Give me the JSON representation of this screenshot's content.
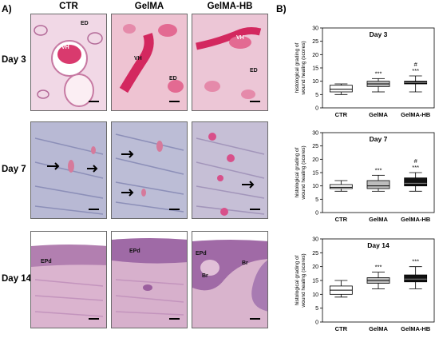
{
  "panel_a": {
    "letter": "A)",
    "columns": [
      "CTR",
      "GelMA",
      "GelMA-HB"
    ],
    "rows": [
      {
        "label": "Day 3",
        "tiles": [
          [
            "ED",
            "VH"
          ],
          [
            "VH",
            "ED"
          ],
          [
            "VH",
            "ED"
          ]
        ]
      },
      {
        "label": "Day 7",
        "tiles": [
          [],
          [],
          []
        ]
      },
      {
        "label": "Day 14",
        "tiles": [
          [
            "EPd"
          ],
          [
            "EPd"
          ],
          [
            "EPd",
            "Br",
            "Br"
          ]
        ]
      }
    ]
  },
  "panel_b": {
    "letter": "B)"
  },
  "colors": {
    "ctr_box": "#ffffff",
    "gelma_box": "#bdbdbd",
    "gelmahb_box": "#111111",
    "stain_pink": "#e88fb0",
    "stain_purple": "#9a8fc0"
  },
  "chart_data": [
    {
      "type": "box",
      "title": "Day 3",
      "ylabel": "histological grading of\nwound healing (scores)",
      "ylim": [
        0,
        30
      ],
      "yticks": [
        0,
        5,
        10,
        15,
        20,
        25,
        30
      ],
      "categories": [
        "CTR",
        "GelMA",
        "GelMA-HB"
      ],
      "boxes": [
        {
          "min": 5,
          "q1": 6,
          "median": 7,
          "q3": 8.5,
          "max": 9
        },
        {
          "min": 6,
          "q1": 8,
          "median": 9,
          "q3": 10,
          "max": 11
        },
        {
          "min": 6,
          "q1": 9,
          "median": 9.5,
          "q3": 10,
          "max": 12
        }
      ],
      "annotations": [
        {
          "category": "GelMA",
          "lines": [
            "***"
          ]
        },
        {
          "category": "GelMA-HB",
          "lines": [
            "#",
            "***"
          ]
        }
      ]
    },
    {
      "type": "box",
      "title": "Day 7",
      "ylabel": "histological grading of\nwound healing (scores)",
      "ylim": [
        0,
        30
      ],
      "yticks": [
        0,
        5,
        10,
        15,
        20,
        25,
        30
      ],
      "categories": [
        "CTR",
        "GelMA",
        "GelMA-HB"
      ],
      "boxes": [
        {
          "min": 8,
          "q1": 9,
          "median": 9.5,
          "q3": 10.5,
          "max": 12
        },
        {
          "min": 8,
          "q1": 9,
          "median": 10,
          "q3": 12,
          "max": 14
        },
        {
          "min": 8,
          "q1": 10,
          "median": 11,
          "q3": 13,
          "max": 15
        }
      ],
      "annotations": [
        {
          "category": "GelMA",
          "lines": [
            "***"
          ]
        },
        {
          "category": "GelMA-HB",
          "lines": [
            "#",
            "***"
          ]
        }
      ]
    },
    {
      "type": "box",
      "title": "Day 14",
      "ylabel": "histological grading of\nwound healing (scores)",
      "ylim": [
        0,
        30
      ],
      "yticks": [
        0,
        5,
        10,
        15,
        20,
        25,
        30
      ],
      "categories": [
        "CTR",
        "GelMA",
        "GelMA-HB"
      ],
      "boxes": [
        {
          "min": 9,
          "q1": 10,
          "median": 11.5,
          "q3": 13,
          "max": 15
        },
        {
          "min": 12,
          "q1": 14,
          "median": 15,
          "q3": 16,
          "max": 18
        },
        {
          "min": 12,
          "q1": 14.5,
          "median": 15.5,
          "q3": 17,
          "max": 20
        }
      ],
      "annotations": [
        {
          "category": "GelMA",
          "lines": [
            "***"
          ]
        },
        {
          "category": "GelMA-HB",
          "lines": [
            "***"
          ]
        }
      ]
    }
  ]
}
